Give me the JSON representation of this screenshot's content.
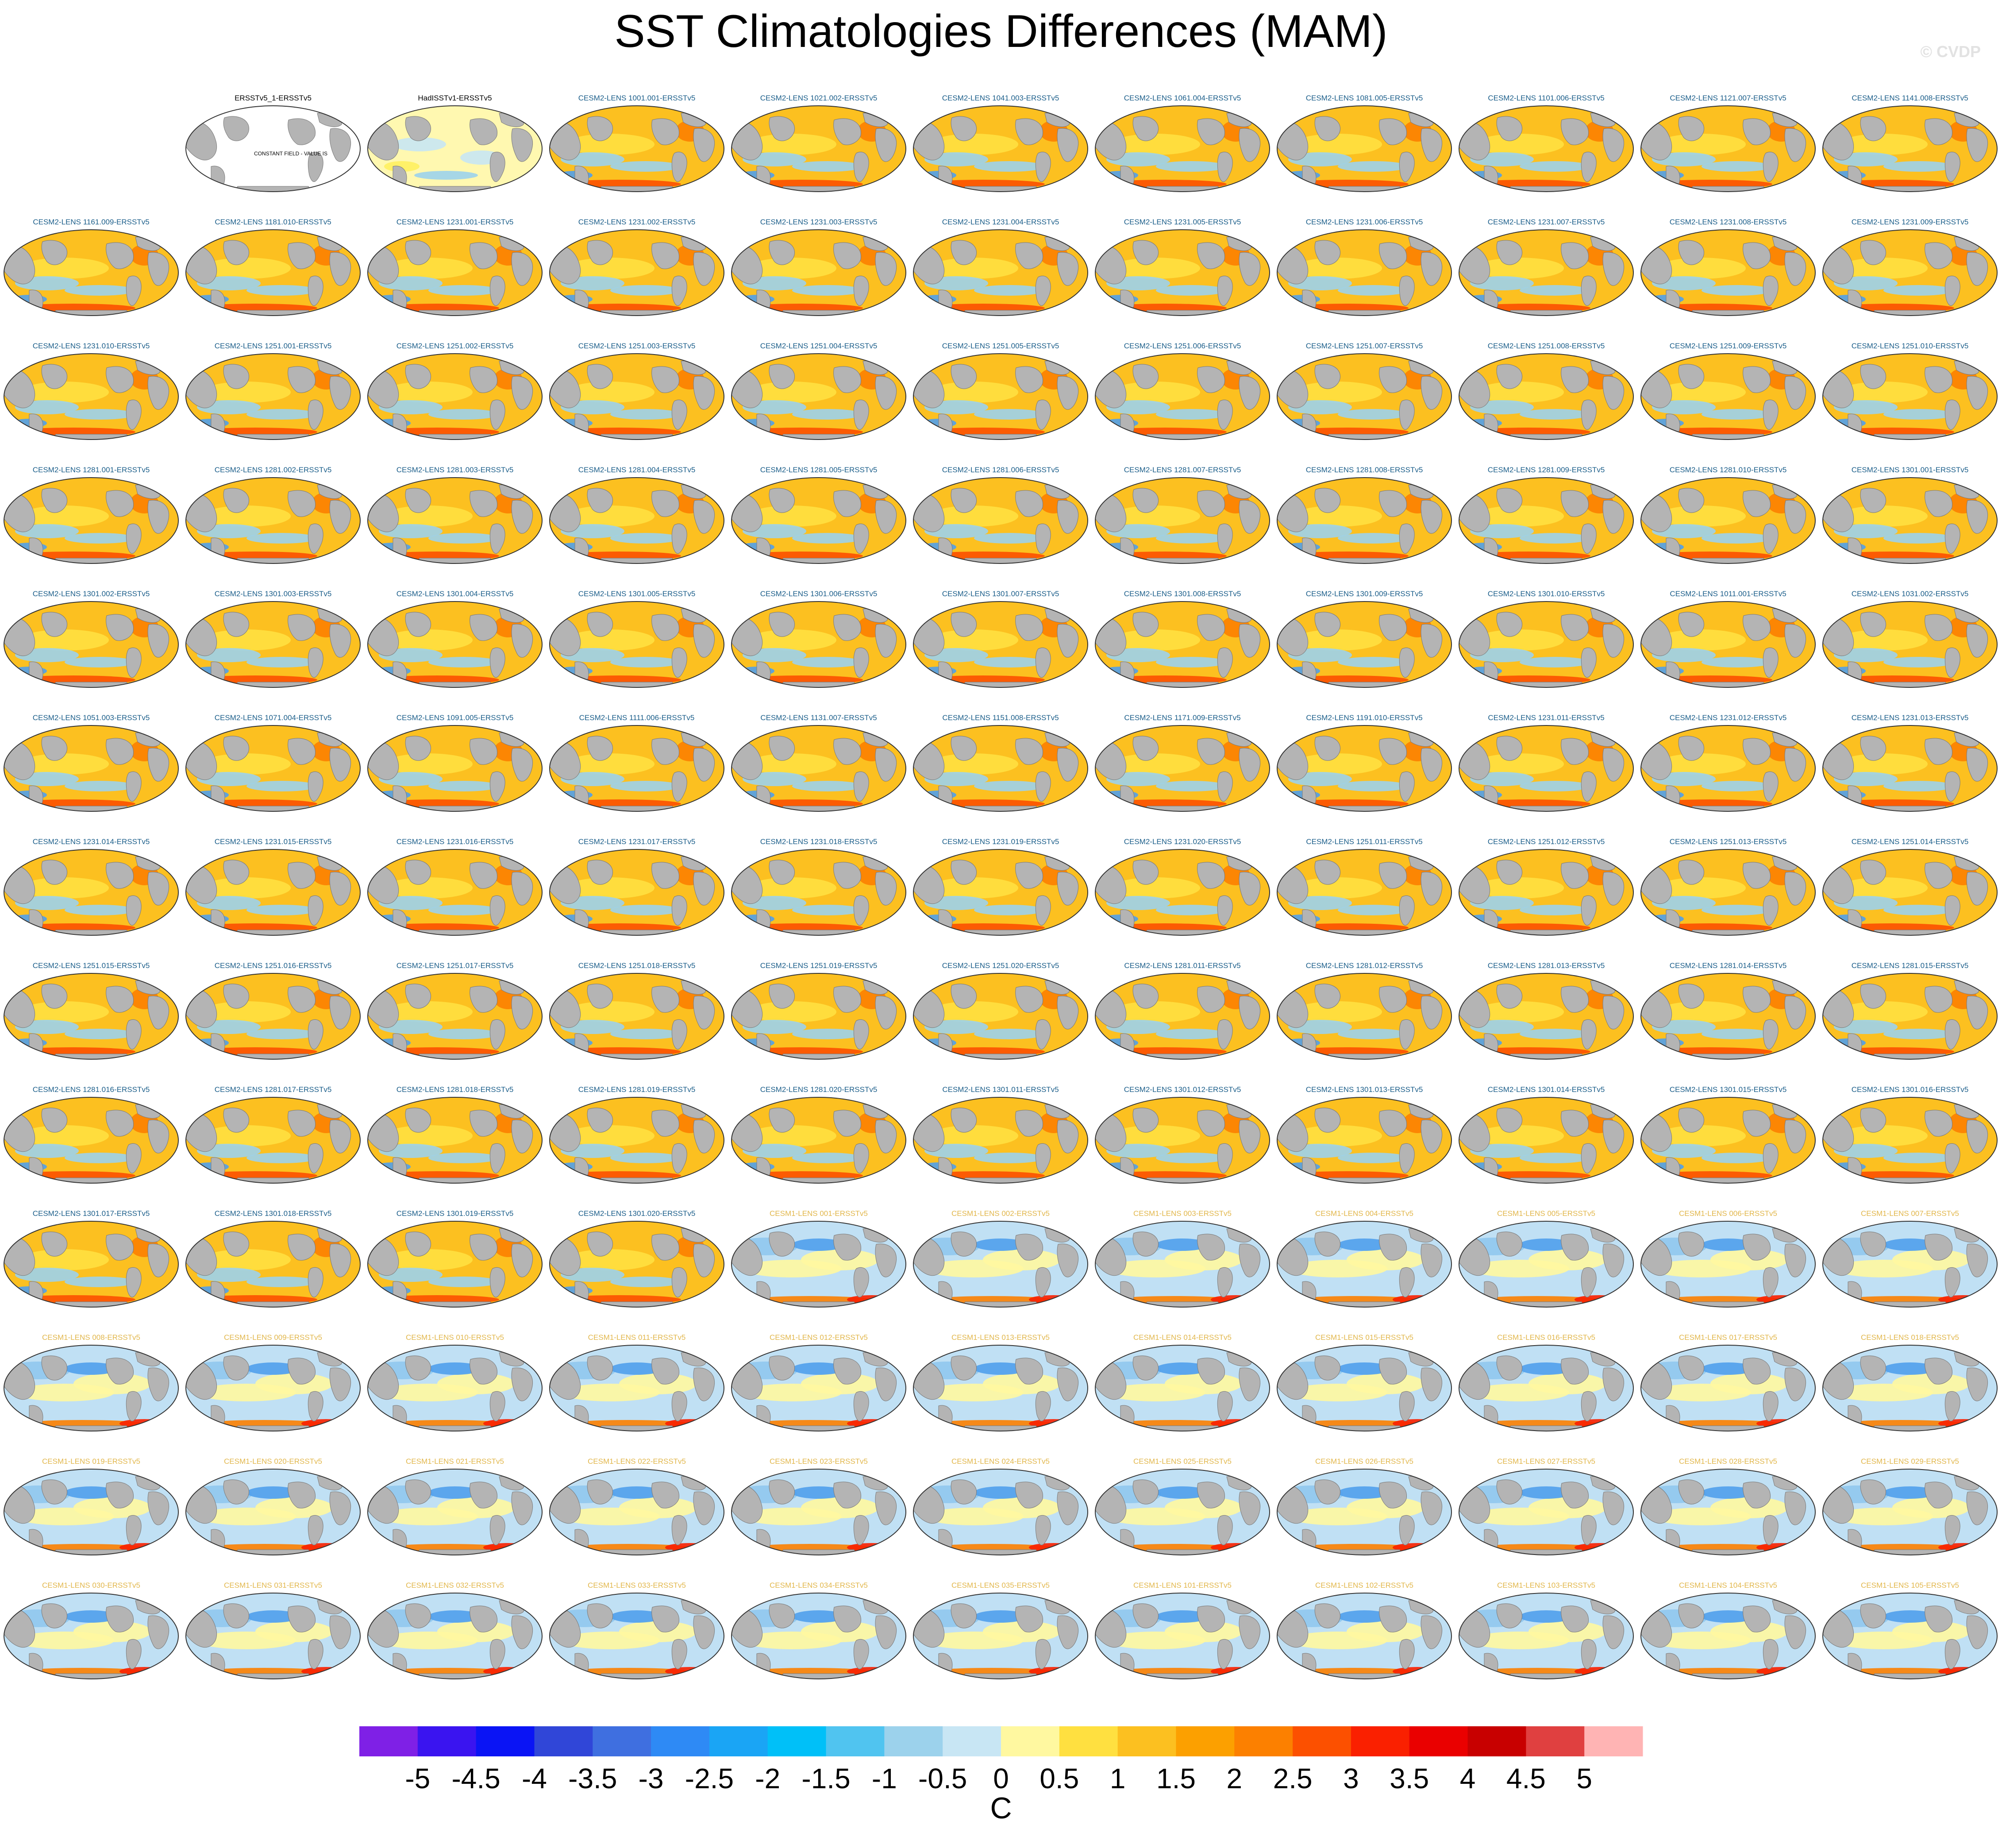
{
  "title": "SST Climatologies Differences (MAM)",
  "copyright": "© CVDP",
  "colors": {
    "cesm2_label": "#1b5e8a",
    "cesm1_label": "#e2b74c",
    "obs_label": "#000000",
    "land": "#b4b4b4"
  },
  "panels": [
    {
      "label": "",
      "group": "empty"
    },
    {
      "label": "ERSSTv5_1-ERSSTv5",
      "group": "obs",
      "note": "CONSTANT FIELD - VALUE IS"
    },
    {
      "label": "HadISSTv1-ERSSTv5",
      "group": "obs2"
    },
    {
      "label": "CESM2-LENS 1001.001-ERSSTv5",
      "group": "cesm2"
    },
    {
      "label": "CESM2-LENS 1021.002-ERSSTv5",
      "group": "cesm2"
    },
    {
      "label": "CESM2-LENS 1041.003-ERSSTv5",
      "group": "cesm2"
    },
    {
      "label": "CESM2-LENS 1061.004-ERSSTv5",
      "group": "cesm2"
    },
    {
      "label": "CESM2-LENS 1081.005-ERSSTv5",
      "group": "cesm2"
    },
    {
      "label": "CESM2-LENS 1101.006-ERSSTv5",
      "group": "cesm2"
    },
    {
      "label": "CESM2-LENS 1121.007-ERSSTv5",
      "group": "cesm2"
    },
    {
      "label": "CESM2-LENS 1141.008-ERSSTv5",
      "group": "cesm2"
    },
    {
      "label": "CESM2-LENS 1161.009-ERSSTv5",
      "group": "cesm2"
    },
    {
      "label": "CESM2-LENS 1181.010-ERSSTv5",
      "group": "cesm2"
    },
    {
      "label": "CESM2-LENS 1231.001-ERSSTv5",
      "group": "cesm2"
    },
    {
      "label": "CESM2-LENS 1231.002-ERSSTv5",
      "group": "cesm2"
    },
    {
      "label": "CESM2-LENS 1231.003-ERSSTv5",
      "group": "cesm2"
    },
    {
      "label": "CESM2-LENS 1231.004-ERSSTv5",
      "group": "cesm2"
    },
    {
      "label": "CESM2-LENS 1231.005-ERSSTv5",
      "group": "cesm2"
    },
    {
      "label": "CESM2-LENS 1231.006-ERSSTv5",
      "group": "cesm2"
    },
    {
      "label": "CESM2-LENS 1231.007-ERSSTv5",
      "group": "cesm2"
    },
    {
      "label": "CESM2-LENS 1231.008-ERSSTv5",
      "group": "cesm2"
    },
    {
      "label": "CESM2-LENS 1231.009-ERSSTv5",
      "group": "cesm2"
    },
    {
      "label": "CESM2-LENS 1231.010-ERSSTv5",
      "group": "cesm2"
    },
    {
      "label": "CESM2-LENS 1251.001-ERSSTv5",
      "group": "cesm2"
    },
    {
      "label": "CESM2-LENS 1251.002-ERSSTv5",
      "group": "cesm2"
    },
    {
      "label": "CESM2-LENS 1251.003-ERSSTv5",
      "group": "cesm2"
    },
    {
      "label": "CESM2-LENS 1251.004-ERSSTv5",
      "group": "cesm2"
    },
    {
      "label": "CESM2-LENS 1251.005-ERSSTv5",
      "group": "cesm2"
    },
    {
      "label": "CESM2-LENS 1251.006-ERSSTv5",
      "group": "cesm2"
    },
    {
      "label": "CESM2-LENS 1251.007-ERSSTv5",
      "group": "cesm2"
    },
    {
      "label": "CESM2-LENS 1251.008-ERSSTv5",
      "group": "cesm2"
    },
    {
      "label": "CESM2-LENS 1251.009-ERSSTv5",
      "group": "cesm2"
    },
    {
      "label": "CESM2-LENS 1251.010-ERSSTv5",
      "group": "cesm2"
    },
    {
      "label": "CESM2-LENS 1281.001-ERSSTv5",
      "group": "cesm2"
    },
    {
      "label": "CESM2-LENS 1281.002-ERSSTv5",
      "group": "cesm2"
    },
    {
      "label": "CESM2-LENS 1281.003-ERSSTv5",
      "group": "cesm2"
    },
    {
      "label": "CESM2-LENS 1281.004-ERSSTv5",
      "group": "cesm2"
    },
    {
      "label": "CESM2-LENS 1281.005-ERSSTv5",
      "group": "cesm2"
    },
    {
      "label": "CESM2-LENS 1281.006-ERSSTv5",
      "group": "cesm2"
    },
    {
      "label": "CESM2-LENS 1281.007-ERSSTv5",
      "group": "cesm2"
    },
    {
      "label": "CESM2-LENS 1281.008-ERSSTv5",
      "group": "cesm2"
    },
    {
      "label": "CESM2-LENS 1281.009-ERSSTv5",
      "group": "cesm2"
    },
    {
      "label": "CESM2-LENS 1281.010-ERSSTv5",
      "group": "cesm2"
    },
    {
      "label": "CESM2-LENS 1301.001-ERSSTv5",
      "group": "cesm2"
    },
    {
      "label": "CESM2-LENS 1301.002-ERSSTv5",
      "group": "cesm2"
    },
    {
      "label": "CESM2-LENS 1301.003-ERSSTv5",
      "group": "cesm2"
    },
    {
      "label": "CESM2-LENS 1301.004-ERSSTv5",
      "group": "cesm2"
    },
    {
      "label": "CESM2-LENS 1301.005-ERSSTv5",
      "group": "cesm2"
    },
    {
      "label": "CESM2-LENS 1301.006-ERSSTv5",
      "group": "cesm2"
    },
    {
      "label": "CESM2-LENS 1301.007-ERSSTv5",
      "group": "cesm2"
    },
    {
      "label": "CESM2-LENS 1301.008-ERSSTv5",
      "group": "cesm2"
    },
    {
      "label": "CESM2-LENS 1301.009-ERSSTv5",
      "group": "cesm2"
    },
    {
      "label": "CESM2-LENS 1301.010-ERSSTv5",
      "group": "cesm2"
    },
    {
      "label": "CESM2-LENS 1011.001-ERSSTv5",
      "group": "cesm2"
    },
    {
      "label": "CESM2-LENS 1031.002-ERSSTv5",
      "group": "cesm2"
    },
    {
      "label": "CESM2-LENS 1051.003-ERSSTv5",
      "group": "cesm2"
    },
    {
      "label": "CESM2-LENS 1071.004-ERSSTv5",
      "group": "cesm2"
    },
    {
      "label": "CESM2-LENS 1091.005-ERSSTv5",
      "group": "cesm2"
    },
    {
      "label": "CESM2-LENS 1111.006-ERSSTv5",
      "group": "cesm2"
    },
    {
      "label": "CESM2-LENS 1131.007-ERSSTv5",
      "group": "cesm2"
    },
    {
      "label": "CESM2-LENS 1151.008-ERSSTv5",
      "group": "cesm2"
    },
    {
      "label": "CESM2-LENS 1171.009-ERSSTv5",
      "group": "cesm2"
    },
    {
      "label": "CESM2-LENS 1191.010-ERSSTv5",
      "group": "cesm2"
    },
    {
      "label": "CESM2-LENS 1231.011-ERSSTv5",
      "group": "cesm2"
    },
    {
      "label": "CESM2-LENS 1231.012-ERSSTv5",
      "group": "cesm2"
    },
    {
      "label": "CESM2-LENS 1231.013-ERSSTv5",
      "group": "cesm2"
    },
    {
      "label": "CESM2-LENS 1231.014-ERSSTv5",
      "group": "cesm2"
    },
    {
      "label": "CESM2-LENS 1231.015-ERSSTv5",
      "group": "cesm2"
    },
    {
      "label": "CESM2-LENS 1231.016-ERSSTv5",
      "group": "cesm2"
    },
    {
      "label": "CESM2-LENS 1231.017-ERSSTv5",
      "group": "cesm2"
    },
    {
      "label": "CESM2-LENS 1231.018-ERSSTv5",
      "group": "cesm2"
    },
    {
      "label": "CESM2-LENS 1231.019-ERSSTv5",
      "group": "cesm2"
    },
    {
      "label": "CESM2-LENS 1231.020-ERSSTv5",
      "group": "cesm2"
    },
    {
      "label": "CESM2-LENS 1251.011-ERSSTv5",
      "group": "cesm2"
    },
    {
      "label": "CESM2-LENS 1251.012-ERSSTv5",
      "group": "cesm2"
    },
    {
      "label": "CESM2-LENS 1251.013-ERSSTv5",
      "group": "cesm2"
    },
    {
      "label": "CESM2-LENS 1251.014-ERSSTv5",
      "group": "cesm2"
    },
    {
      "label": "CESM2-LENS 1251.015-ERSSTv5",
      "group": "cesm2"
    },
    {
      "label": "CESM2-LENS 1251.016-ERSSTv5",
      "group": "cesm2"
    },
    {
      "label": "CESM2-LENS 1251.017-ERSSTv5",
      "group": "cesm2"
    },
    {
      "label": "CESM2-LENS 1251.018-ERSSTv5",
      "group": "cesm2"
    },
    {
      "label": "CESM2-LENS 1251.019-ERSSTv5",
      "group": "cesm2"
    },
    {
      "label": "CESM2-LENS 1251.020-ERSSTv5",
      "group": "cesm2"
    },
    {
      "label": "CESM2-LENS 1281.011-ERSSTv5",
      "group": "cesm2"
    },
    {
      "label": "CESM2-LENS 1281.012-ERSSTv5",
      "group": "cesm2"
    },
    {
      "label": "CESM2-LENS 1281.013-ERSSTv5",
      "group": "cesm2"
    },
    {
      "label": "CESM2-LENS 1281.014-ERSSTv5",
      "group": "cesm2"
    },
    {
      "label": "CESM2-LENS 1281.015-ERSSTv5",
      "group": "cesm2"
    },
    {
      "label": "CESM2-LENS 1281.016-ERSSTv5",
      "group": "cesm2"
    },
    {
      "label": "CESM2-LENS 1281.017-ERSSTv5",
      "group": "cesm2"
    },
    {
      "label": "CESM2-LENS 1281.018-ERSSTv5",
      "group": "cesm2"
    },
    {
      "label": "CESM2-LENS 1281.019-ERSSTv5",
      "group": "cesm2"
    },
    {
      "label": "CESM2-LENS 1281.020-ERSSTv5",
      "group": "cesm2"
    },
    {
      "label": "CESM2-LENS 1301.011-ERSSTv5",
      "group": "cesm2"
    },
    {
      "label": "CESM2-LENS 1301.012-ERSSTv5",
      "group": "cesm2"
    },
    {
      "label": "CESM2-LENS 1301.013-ERSSTv5",
      "group": "cesm2"
    },
    {
      "label": "CESM2-LENS 1301.014-ERSSTv5",
      "group": "cesm2"
    },
    {
      "label": "CESM2-LENS 1301.015-ERSSTv5",
      "group": "cesm2"
    },
    {
      "label": "CESM2-LENS 1301.016-ERSSTv5",
      "group": "cesm2"
    },
    {
      "label": "CESM2-LENS 1301.017-ERSSTv5",
      "group": "cesm2"
    },
    {
      "label": "CESM2-LENS 1301.018-ERSSTv5",
      "group": "cesm2"
    },
    {
      "label": "CESM2-LENS 1301.019-ERSSTv5",
      "group": "cesm2"
    },
    {
      "label": "CESM2-LENS 1301.020-ERSSTv5",
      "group": "cesm2"
    },
    {
      "label": "CESM1-LENS 001-ERSSTv5",
      "group": "cesm1"
    },
    {
      "label": "CESM1-LENS 002-ERSSTv5",
      "group": "cesm1"
    },
    {
      "label": "CESM1-LENS 003-ERSSTv5",
      "group": "cesm1"
    },
    {
      "label": "CESM1-LENS 004-ERSSTv5",
      "group": "cesm1"
    },
    {
      "label": "CESM1-LENS 005-ERSSTv5",
      "group": "cesm1"
    },
    {
      "label": "CESM1-LENS 006-ERSSTv5",
      "group": "cesm1"
    },
    {
      "label": "CESM1-LENS 007-ERSSTv5",
      "group": "cesm1"
    },
    {
      "label": "CESM1-LENS 008-ERSSTv5",
      "group": "cesm1"
    },
    {
      "label": "CESM1-LENS 009-ERSSTv5",
      "group": "cesm1"
    },
    {
      "label": "CESM1-LENS 010-ERSSTv5",
      "group": "cesm1"
    },
    {
      "label": "CESM1-LENS 011-ERSSTv5",
      "group": "cesm1"
    },
    {
      "label": "CESM1-LENS 012-ERSSTv5",
      "group": "cesm1"
    },
    {
      "label": "CESM1-LENS 013-ERSSTv5",
      "group": "cesm1"
    },
    {
      "label": "CESM1-LENS 014-ERSSTv5",
      "group": "cesm1"
    },
    {
      "label": "CESM1-LENS 015-ERSSTv5",
      "group": "cesm1"
    },
    {
      "label": "CESM1-LENS 016-ERSSTv5",
      "group": "cesm1"
    },
    {
      "label": "CESM1-LENS 017-ERSSTv5",
      "group": "cesm1"
    },
    {
      "label": "CESM1-LENS 018-ERSSTv5",
      "group": "cesm1"
    },
    {
      "label": "CESM1-LENS 019-ERSSTv5",
      "group": "cesm1"
    },
    {
      "label": "CESM1-LENS 020-ERSSTv5",
      "group": "cesm1"
    },
    {
      "label": "CESM1-LENS 021-ERSSTv5",
      "group": "cesm1"
    },
    {
      "label": "CESM1-LENS 022-ERSSTv5",
      "group": "cesm1"
    },
    {
      "label": "CESM1-LENS 023-ERSSTv5",
      "group": "cesm1"
    },
    {
      "label": "CESM1-LENS 024-ERSSTv5",
      "group": "cesm1"
    },
    {
      "label": "CESM1-LENS 025-ERSSTv5",
      "group": "cesm1"
    },
    {
      "label": "CESM1-LENS 026-ERSSTv5",
      "group": "cesm1"
    },
    {
      "label": "CESM1-LENS 027-ERSSTv5",
      "group": "cesm1"
    },
    {
      "label": "CESM1-LENS 028-ERSSTv5",
      "group": "cesm1"
    },
    {
      "label": "CESM1-LENS 029-ERSSTv5",
      "group": "cesm1"
    },
    {
      "label": "CESM1-LENS 030-ERSSTv5",
      "group": "cesm1"
    },
    {
      "label": "CESM1-LENS 031-ERSSTv5",
      "group": "cesm1"
    },
    {
      "label": "CESM1-LENS 032-ERSSTv5",
      "group": "cesm1"
    },
    {
      "label": "CESM1-LENS 033-ERSSTv5",
      "group": "cesm1"
    },
    {
      "label": "CESM1-LENS 034-ERSSTv5",
      "group": "cesm1"
    },
    {
      "label": "CESM1-LENS 035-ERSSTv5",
      "group": "cesm1"
    },
    {
      "label": "CESM1-LENS 101-ERSSTv5",
      "group": "cesm1"
    },
    {
      "label": "CESM1-LENS 102-ERSSTv5",
      "group": "cesm1"
    },
    {
      "label": "CESM1-LENS 103-ERSSTv5",
      "group": "cesm1"
    },
    {
      "label": "CESM1-LENS 104-ERSSTv5",
      "group": "cesm1"
    },
    {
      "label": "CESM1-LENS 105-ERSSTv5",
      "group": "cesm1"
    }
  ],
  "chart_data": {
    "type": "heatmap",
    "title": "SST Climatologies Differences (MAM)",
    "colorbar": {
      "unit": "C",
      "range": [
        -5,
        5
      ],
      "levels": [
        "-5",
        "-4.5",
        "-4",
        "-3.5",
        "-3",
        "-2.5",
        "-2",
        "-1.5",
        "-1",
        "-0.5",
        "0",
        "0.5",
        "1",
        "1.5",
        "2",
        "2.5",
        "3",
        "3.5",
        "4",
        "4.5",
        "5"
      ],
      "colors": [
        "#7f20e6",
        "#3a14f0",
        "#0a14f5",
        "#3046d8",
        "#3f6fe0",
        "#2e8af5",
        "#1aa5f5",
        "#00c0f8",
        "#50c4f0",
        "#9cd2ec",
        "#c8e6f4",
        "#fff8a0",
        "#ffe040",
        "#fcc020",
        "#fca000",
        "#fc8000",
        "#fc5000",
        "#fa2000",
        "#ea0000",
        "#c80000",
        "#e04040",
        "#ffb4b4"
      ]
    }
  }
}
